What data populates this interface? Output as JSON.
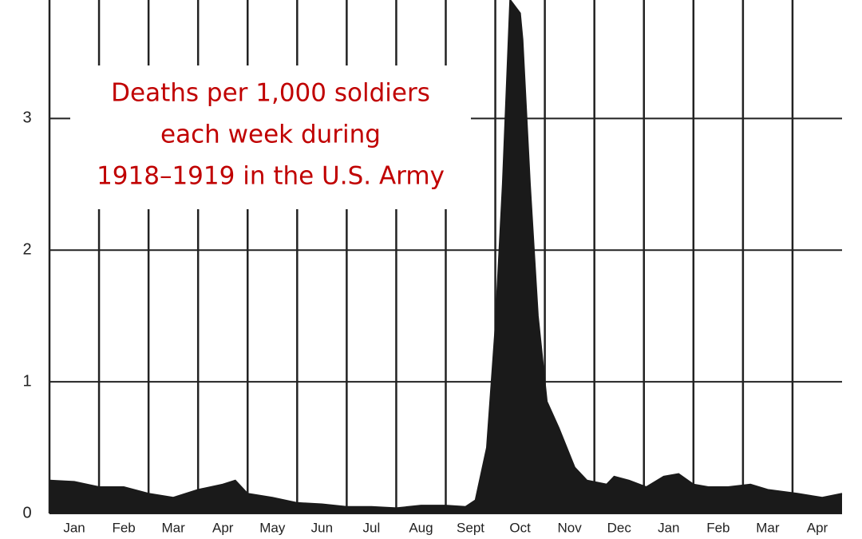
{
  "chart_data": {
    "type": "area",
    "annotation": [
      "Deaths per 1,000 soldiers",
      "each week during",
      "1918–1919 in the U.S. Army"
    ],
    "x": [
      0,
      0.5,
      1,
      1.5,
      2,
      2.5,
      3,
      3.5,
      3.75,
      4,
      4.5,
      5,
      5.5,
      6,
      6.5,
      7,
      7.5,
      8,
      8.4,
      8.6,
      8.83,
      9.0,
      9.15,
      9.3,
      9.5,
      9.55,
      9.7,
      9.86,
      10.04,
      10.28,
      10.6,
      10.85,
      11.25,
      11.4,
      11.7,
      12.05,
      12.4,
      12.7,
      13.0,
      13.3,
      13.7,
      14.15,
      14.5,
      15.1,
      15.6,
      16
    ],
    "values": [
      0.25,
      0.24,
      0.2,
      0.2,
      0.15,
      0.12,
      0.18,
      0.22,
      0.25,
      0.15,
      0.12,
      0.08,
      0.07,
      0.05,
      0.05,
      0.04,
      0.06,
      0.06,
      0.05,
      0.1,
      0.5,
      1.4,
      2.5,
      3.9,
      3.8,
      3.6,
      2.5,
      1.5,
      0.85,
      0.65,
      0.35,
      0.25,
      0.22,
      0.28,
      0.25,
      0.2,
      0.28,
      0.3,
      0.22,
      0.2,
      0.2,
      0.22,
      0.18,
      0.15,
      0.12,
      0.15
    ],
    "color": "#1a1a1a",
    "xlim": [
      0,
      16
    ],
    "xticks": [
      {
        "value": 0.5,
        "label": "Jan"
      },
      {
        "value": 1.5,
        "label": "Feb"
      },
      {
        "value": 2.5,
        "label": "Mar"
      },
      {
        "value": 3.5,
        "label": "Apr"
      },
      {
        "value": 4.5,
        "label": "May"
      },
      {
        "value": 5.5,
        "label": "Jun"
      },
      {
        "value": 6.5,
        "label": "Jul"
      },
      {
        "value": 7.5,
        "label": "Aug"
      },
      {
        "value": 8.5,
        "label": "Sept"
      },
      {
        "value": 9.5,
        "label": "Oct"
      },
      {
        "value": 10.5,
        "label": "Nov"
      },
      {
        "value": 11.5,
        "label": "Dec"
      },
      {
        "value": 12.5,
        "label": "Jan"
      },
      {
        "value": 13.5,
        "label": "Feb"
      },
      {
        "value": 14.5,
        "label": "Mar"
      },
      {
        "value": 15.5,
        "label": "Apr"
      }
    ],
    "ylim": [
      0,
      3.9
    ],
    "yticks": [
      0,
      1,
      2,
      3
    ],
    "grid": true
  }
}
